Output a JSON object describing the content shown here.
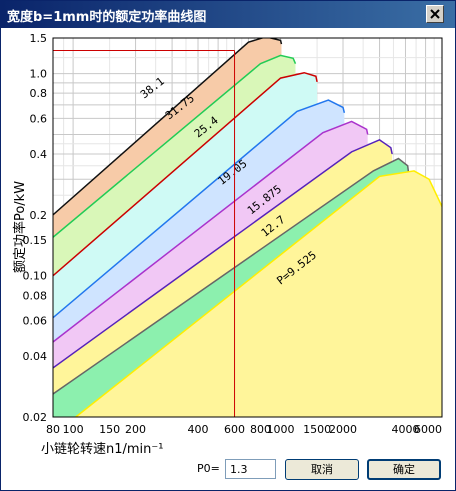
{
  "window": {
    "title": "宽度b=1mm时的额定功率曲线图"
  },
  "controls": {
    "p0_label": "P0=",
    "p0_value": "1.3",
    "cancel_label": "取消",
    "ok_label": "确定"
  },
  "colors": {
    "title_bar": "#0a246a",
    "grid": "#c8c8c8",
    "marker": "#cc0000"
  },
  "chart_data": {
    "type": "area",
    "title": "",
    "xlabel": "小链轮转速n1/min⁻¹",
    "ylabel": "额定功率Po/kW",
    "x_scale": "log",
    "y_scale": "log",
    "xlim": [
      80,
      6000
    ],
    "ylim": [
      0.02,
      1.5
    ],
    "x_ticks": [
      80,
      100,
      150,
      200,
      400,
      600,
      800,
      1000,
      1500,
      2000,
      4000,
      6000
    ],
    "x_tick_labels": [
      "80",
      "100",
      "150",
      "200",
      "400",
      "600",
      "800",
      "1000",
      "1500",
      "2000",
      "4000",
      "6000"
    ],
    "y_ticks": [
      0.02,
      0.04,
      0.06,
      0.08,
      0.1,
      0.15,
      0.2,
      0.4,
      0.6,
      0.8,
      1.0,
      1.5
    ],
    "y_tick_labels": [
      "0.02",
      "0.04",
      "0.06",
      "0.08",
      "0.10",
      "0.15",
      "0.2",
      "0.4",
      "0.6",
      "0.8",
      "1.0",
      "1.5"
    ],
    "grid": true,
    "series": [
      {
        "name": "38.1",
        "label": "38.1",
        "fill": "#f7cba8",
        "line": "#111111",
        "label_at": {
          "x": 220,
          "y": 0.75
        },
        "points": [
          [
            80,
            0.2
          ],
          [
            700,
            1.43
          ],
          [
            850,
            1.52
          ],
          [
            1000,
            1.46
          ],
          [
            1010,
            1.4
          ]
        ]
      },
      {
        "name": "31.75",
        "label": "31.75",
        "fill": "#d9f7b8",
        "line": "#22cc55",
        "label_at": {
          "x": 290,
          "y": 0.59
        },
        "points": [
          [
            80,
            0.155
          ],
          [
            800,
            1.12
          ],
          [
            1000,
            1.23
          ],
          [
            1150,
            1.19
          ],
          [
            1180,
            1.12
          ]
        ]
      },
      {
        "name": "25.4",
        "label": "25.4",
        "fill": "#cffaf5",
        "line": "#cc0000",
        "label_at": {
          "x": 400,
          "y": 0.48
        },
        "points": [
          [
            80,
            0.1
          ],
          [
            1000,
            0.95
          ],
          [
            1300,
            1.01
          ],
          [
            1480,
            0.97
          ],
          [
            1500,
            0.91
          ]
        ]
      },
      {
        "name": "19.05",
        "label": "19.05",
        "fill": "#cfe4ff",
        "line": "#2277ee",
        "label_at": {
          "x": 520,
          "y": 0.28
        },
        "points": [
          [
            80,
            0.062
          ],
          [
            1200,
            0.65
          ],
          [
            1700,
            0.74
          ],
          [
            2000,
            0.68
          ],
          [
            2030,
            0.64
          ]
        ]
      },
      {
        "name": "15.875",
        "label": "15.875",
        "fill": "#f1c8f5",
        "line": "#aa33cc",
        "label_at": {
          "x": 720,
          "y": 0.2
        },
        "points": [
          [
            80,
            0.047
          ],
          [
            1600,
            0.51
          ],
          [
            2200,
            0.58
          ],
          [
            2600,
            0.53
          ],
          [
            2630,
            0.5
          ]
        ]
      },
      {
        "name": "12.7",
        "label": "12.7",
        "fill": "#fff59a",
        "line": "#5522bb",
        "label_at": {
          "x": 840,
          "y": 0.155
        },
        "points": [
          [
            80,
            0.035
          ],
          [
            2200,
            0.41
          ],
          [
            3000,
            0.47
          ],
          [
            3400,
            0.43
          ],
          [
            3450,
            0.4
          ]
        ]
      },
      {
        "name": "9.525",
        "label": "P=9.525",
        "fill": "#8cf0ae",
        "line": "#666666",
        "label_at": {
          "x": 1000,
          "y": 0.09
        },
        "points": [
          [
            80,
            0.026
          ],
          [
            2800,
            0.33
          ],
          [
            3700,
            0.38
          ],
          [
            4100,
            0.35
          ],
          [
            4150,
            0.315
          ]
        ]
      },
      {
        "name": "P",
        "label": "",
        "fill": "#fff59a",
        "line": "#ffee00",
        "label_at": null,
        "points": [
          [
            103,
            0.02
          ],
          [
            3000,
            0.31
          ],
          [
            4400,
            0.33
          ],
          [
            5200,
            0.3
          ],
          [
            6000,
            0.22
          ]
        ]
      }
    ],
    "marker": {
      "x": 600,
      "y": 1.3
    }
  }
}
